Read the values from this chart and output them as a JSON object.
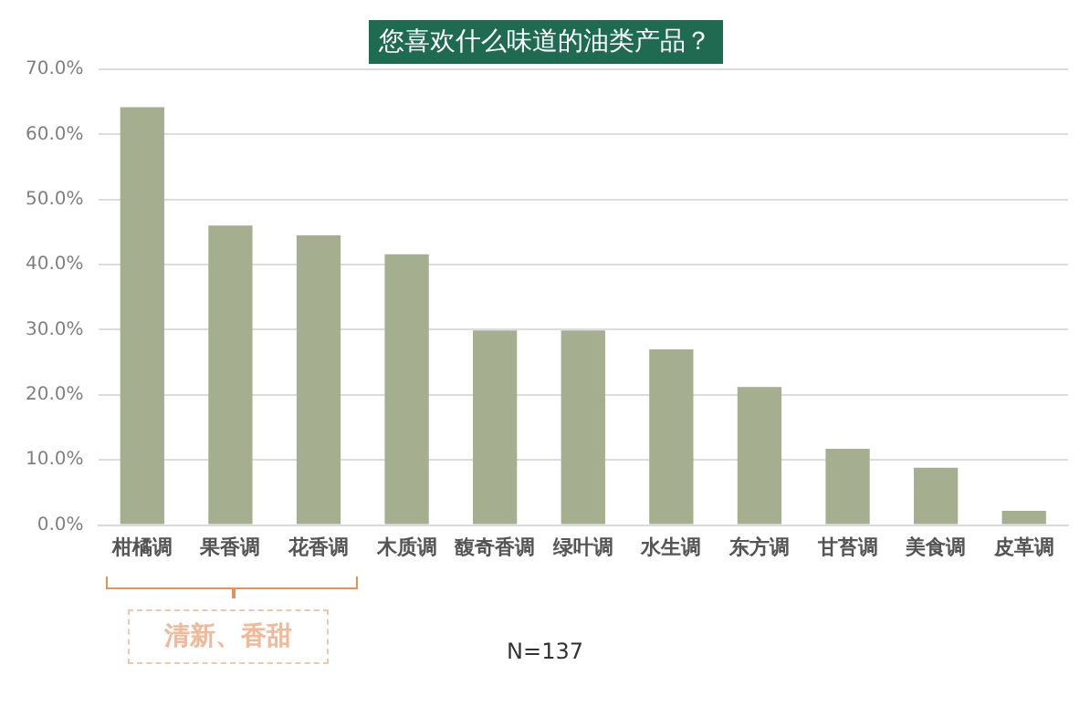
{
  "chart_data": {
    "type": "bar",
    "title": "您喜欢什么味道的油类产品？",
    "categories": [
      "柑橘调",
      "果香调",
      "花香调",
      "木质调",
      "馥奇香调",
      "绿叶调",
      "水生调",
      "东方调",
      "甘苔调",
      "美食调",
      "皮革调"
    ],
    "values": [
      64.2,
      46.0,
      44.5,
      41.6,
      29.9,
      29.9,
      27.0,
      21.2,
      11.7,
      8.8,
      2.2
    ],
    "color": "#a5ae8f",
    "ylim": [
      0,
      70
    ],
    "yticks": [
      {
        "value": 0,
        "label": "0.0%"
      },
      {
        "value": 10,
        "label": "10.0%"
      },
      {
        "value": 20,
        "label": "20.0%"
      },
      {
        "value": 30,
        "label": "30.0%"
      },
      {
        "value": 40,
        "label": "40.0%"
      },
      {
        "value": 50,
        "label": "50.0%"
      },
      {
        "value": 60,
        "label": "60.0%"
      },
      {
        "value": 70,
        "label": "70.0%"
      }
    ],
    "grid": "y",
    "legend": false,
    "annotations": [
      "清新、香甜",
      "N=137"
    ]
  }
}
